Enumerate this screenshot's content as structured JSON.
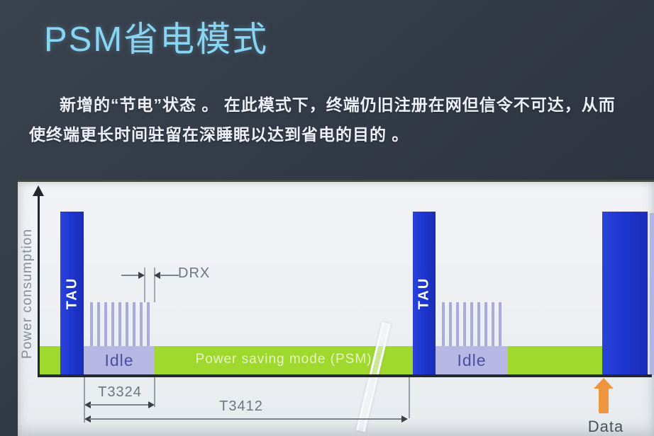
{
  "slide": {
    "title": "PSM省电模式",
    "paragraph": {
      "line1": "新增的“节电”状态 。 在此模式下，终端仍旧注册在网但信令不可达，从而",
      "line2": "使终端更长时间驻留在深睡眠以达到省电的目的 。"
    }
  },
  "diagram": {
    "y_axis_label": "Power consumption",
    "bars": {
      "tau_label": "TAU",
      "idle_label": "Idle",
      "psm_label": "Power saving mode (PSM)"
    },
    "annotations": {
      "drx_label": "DRX",
      "t3324_label": "T3324",
      "t3412_label": "T3412",
      "data_label": "Data"
    },
    "sequence": [
      {
        "type": "bar",
        "label": "TAU",
        "color": "#1e36cf"
      },
      {
        "type": "bar",
        "label": "Idle",
        "color": "#b6b8e3",
        "detail": "DRX paging stripes"
      },
      {
        "type": "bar",
        "label": "Power saving mode (PSM)",
        "color": "#a0d92e"
      },
      {
        "type": "bar",
        "label": "TAU",
        "color": "#1e36cf"
      },
      {
        "type": "bar",
        "label": "Idle",
        "color": "#b6b8e3",
        "detail": "DRX paging stripes"
      },
      {
        "type": "bar",
        "label": "Power saving mode (PSM)",
        "color": "#a0d92e"
      },
      {
        "type": "bar",
        "label": "TAU",
        "color": "#1e36cf"
      },
      {
        "type": "marker",
        "label": "Data",
        "color": "#ee9540"
      }
    ],
    "timers": [
      {
        "name": "T3324",
        "spans": "Idle period"
      },
      {
        "name": "T3412",
        "spans": "TAU period"
      }
    ],
    "colors": {
      "title_cyan": "#87d5f2",
      "tau_blue": "#1e36cf",
      "idle_lavender": "#b6b8e3",
      "stripe_lavender": "#a9abdc",
      "psm_green": "#a0d92e",
      "data_orange": "#ee9540",
      "panel_light": "#eef1f4",
      "background_dark": "#323a46"
    }
  }
}
